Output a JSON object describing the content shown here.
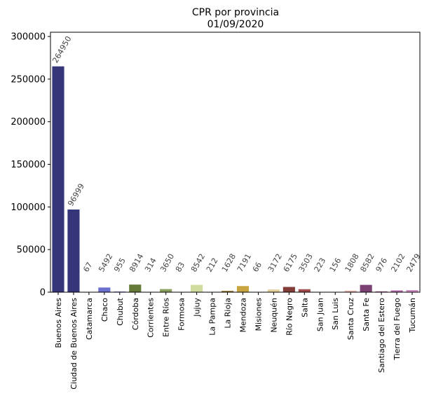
{
  "chart_data": {
    "type": "bar",
    "title": "CPR por provincia",
    "subtitle": "01/09/2020",
    "xlabel": "",
    "ylabel": "",
    "ylim": [
      0,
      305000
    ],
    "yticks": [
      0,
      50000,
      100000,
      150000,
      200000,
      250000,
      300000
    ],
    "grid": false,
    "legend": "none",
    "categories": [
      "Buenos Aires",
      "Ciudad de Buenos Aires",
      "Catamarca",
      "Chaco",
      "Chubut",
      "Córdoba",
      "Corrientes",
      "Entre Ríos",
      "Formosa",
      "Jujuy",
      "La Pampa",
      "La Rioja",
      "Mendoza",
      "Misiones",
      "Neuquén",
      "Río Negro",
      "Salta",
      "San Juan",
      "San Luis",
      "Santa Cruz",
      "Santa Fe",
      "Santiago del Estero",
      "Tierra del Fuego",
      "Tucumán"
    ],
    "values": [
      264950,
      96999,
      67,
      5492,
      955,
      8914,
      314,
      3650,
      83,
      8542,
      212,
      1628,
      7191,
      66,
      3172,
      6175,
      3503,
      223,
      156,
      1808,
      8582,
      976,
      2102,
      2479
    ],
    "colors": [
      "#353679",
      "#353679",
      "#4e54aa",
      "#6a6fd0",
      "#9b9de0",
      "#637a39",
      "#8c9f51",
      "#8ca05d",
      "#b6c985",
      "#d0db9e",
      "#8b6e2f",
      "#9b7d3b",
      "#c8a53f",
      "#e6c66a",
      "#e5d09a",
      "#843c39",
      "#a14c4c",
      "#c46a66",
      "#d88f86",
      "#e7b3ae",
      "#7b4173",
      "#9e5894",
      "#b36aa9",
      "#cf8cc4"
    ]
  }
}
